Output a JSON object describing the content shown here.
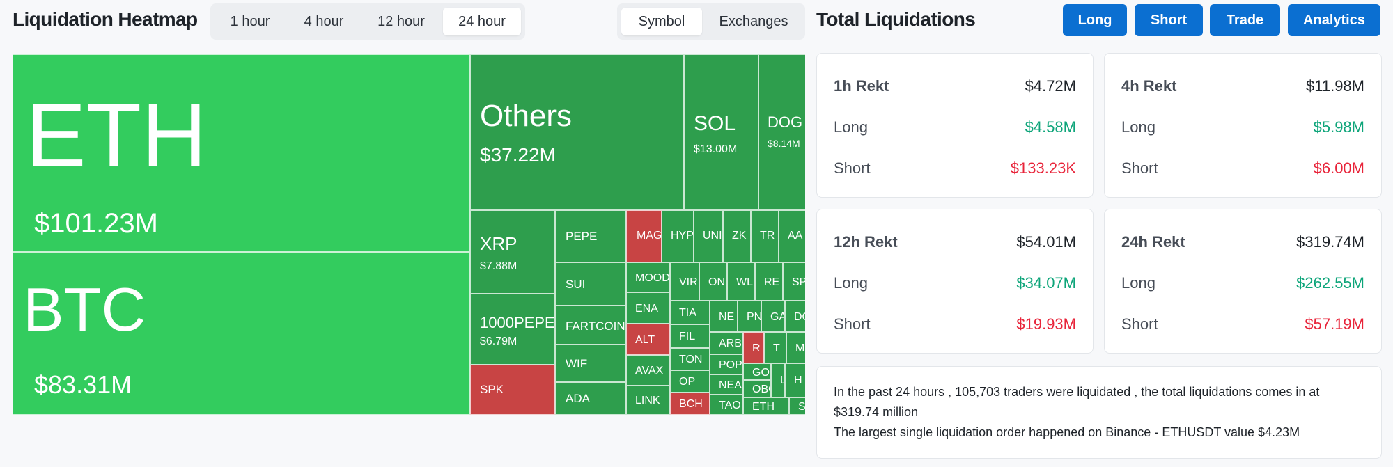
{
  "heatmap": {
    "title": "Liquidation Heatmap",
    "timeframes": [
      "1 hour",
      "4 hour",
      "12 hour",
      "24 hour"
    ],
    "active_timeframe": "24 hour",
    "view_tabs": [
      "Symbol",
      "Exchanges"
    ],
    "active_view": "Symbol",
    "tiles": [
      {
        "symbol": "ETH",
        "value": "$101.23M",
        "color": "#33cc5e"
      },
      {
        "symbol": "BTC",
        "value": "$83.31M",
        "color": "#33cc5e"
      },
      {
        "symbol": "Others",
        "value": "$37.22M",
        "color": "#2e9e4d"
      },
      {
        "symbol": "SOL",
        "value": "$13.00M",
        "color": "#2e9e4d"
      },
      {
        "symbol": "DOG",
        "value": "$8.14M",
        "color": "#2e9e4d"
      },
      {
        "symbol": "XRP",
        "value": "$7.88M",
        "color": "#2e9e4d"
      },
      {
        "symbol": "1000PEPE",
        "value": "$6.79M",
        "color": "#2e9e4d"
      },
      {
        "symbol": "SPK",
        "value": "",
        "color": "#c84444"
      },
      {
        "symbol": "PEPE",
        "value": "",
        "color": "#2e9e4d"
      },
      {
        "symbol": "SUI",
        "value": "",
        "color": "#2e9e4d"
      },
      {
        "symbol": "FARTCOIN",
        "value": "",
        "color": "#2e9e4d"
      },
      {
        "symbol": "WIF",
        "value": "",
        "color": "#2e9e4d"
      },
      {
        "symbol": "ADA",
        "value": "",
        "color": "#2e9e4d"
      },
      {
        "symbol": "MAG",
        "value": "",
        "color": "#c84444"
      },
      {
        "symbol": "HYP",
        "value": "",
        "color": "#2e9e4d"
      },
      {
        "symbol": "UNI",
        "value": "",
        "color": "#2e9e4d"
      },
      {
        "symbol": "ZK",
        "value": "",
        "color": "#2e9e4d"
      },
      {
        "symbol": "TR",
        "value": "",
        "color": "#2e9e4d"
      },
      {
        "symbol": "AA",
        "value": "",
        "color": "#2e9e4d"
      },
      {
        "symbol": "MOOD",
        "value": "",
        "color": "#2e9e4d"
      },
      {
        "symbol": "VIR",
        "value": "",
        "color": "#2e9e4d"
      },
      {
        "symbol": "ON",
        "value": "",
        "color": "#2e9e4d"
      },
      {
        "symbol": "WL",
        "value": "",
        "color": "#2e9e4d"
      },
      {
        "symbol": "RE",
        "value": "",
        "color": "#2e9e4d"
      },
      {
        "symbol": "SP",
        "value": "",
        "color": "#2e9e4d"
      },
      {
        "symbol": "ENA",
        "value": "",
        "color": "#2e9e4d"
      },
      {
        "symbol": "TIA",
        "value": "",
        "color": "#2e9e4d"
      },
      {
        "symbol": "NE",
        "value": "",
        "color": "#2e9e4d"
      },
      {
        "symbol": "PN",
        "value": "",
        "color": "#2e9e4d"
      },
      {
        "symbol": "GA",
        "value": "",
        "color": "#2e9e4d"
      },
      {
        "symbol": "DO",
        "value": "",
        "color": "#2e9e4d"
      },
      {
        "symbol": "ALT",
        "value": "",
        "color": "#c84444"
      },
      {
        "symbol": "FIL",
        "value": "",
        "color": "#2e9e4d"
      },
      {
        "symbol": "ARB",
        "value": "",
        "color": "#2e9e4d"
      },
      {
        "symbol": "R",
        "value": "",
        "color": "#c84444"
      },
      {
        "symbol": "T",
        "value": "",
        "color": "#2e9e4d"
      },
      {
        "symbol": "M",
        "value": "",
        "color": "#2e9e4d"
      },
      {
        "symbol": "AVAX",
        "value": "",
        "color": "#2e9e4d"
      },
      {
        "symbol": "TON",
        "value": "",
        "color": "#2e9e4d"
      },
      {
        "symbol": "POP",
        "value": "",
        "color": "#2e9e4d"
      },
      {
        "symbol": "GOA",
        "value": "",
        "color": "#2e9e4d"
      },
      {
        "symbol": "L",
        "value": "",
        "color": "#2e9e4d"
      },
      {
        "symbol": "H",
        "value": "",
        "color": "#2e9e4d"
      },
      {
        "symbol": "OP",
        "value": "",
        "color": "#2e9e4d"
      },
      {
        "symbol": "NEA",
        "value": "",
        "color": "#2e9e4d"
      },
      {
        "symbol": "OBO",
        "value": "",
        "color": "#2e9e4d"
      },
      {
        "symbol": "LINK",
        "value": "",
        "color": "#2e9e4d"
      },
      {
        "symbol": "BCH",
        "value": "",
        "color": "#c84444"
      },
      {
        "symbol": "TAO",
        "value": "",
        "color": "#2e9e4d"
      },
      {
        "symbol": "ETH",
        "value": "",
        "color": "#2e9e4d"
      },
      {
        "symbol": "SOF",
        "value": "",
        "color": "#2e9e4d"
      }
    ]
  },
  "totals": {
    "title": "Total Liquidations",
    "nav_buttons": [
      "Long",
      "Short",
      "Trade",
      "Analytics"
    ],
    "cards": [
      {
        "title": "1h Rekt",
        "total": "$4.72M",
        "long_label": "Long",
        "long": "$4.58M",
        "short_label": "Short",
        "short": "$133.23K"
      },
      {
        "title": "4h Rekt",
        "total": "$11.98M",
        "long_label": "Long",
        "long": "$5.98M",
        "short_label": "Short",
        "short": "$6.00M"
      },
      {
        "title": "12h Rekt",
        "total": "$54.01M",
        "long_label": "Long",
        "long": "$34.07M",
        "short_label": "Short",
        "short": "$19.93M"
      },
      {
        "title": "24h Rekt",
        "total": "$319.74M",
        "long_label": "Long",
        "long": "$262.55M",
        "short_label": "Short",
        "short": "$57.19M"
      }
    ],
    "summary_line1": "In the past 24 hours , 105,703 traders were liquidated , the total liquidations comes in at $319.74 million",
    "summary_line2": "The largest single liquidation order happened on Binance - ETHUSDT value $4.23M"
  },
  "colors": {
    "brand_blue": "#0b6fd1",
    "long_green": "#0ea57a",
    "short_red": "#e8243a",
    "heat_green": "#33cc5e",
    "heat_dark_green": "#2e9e4d",
    "heat_red": "#c84444"
  }
}
